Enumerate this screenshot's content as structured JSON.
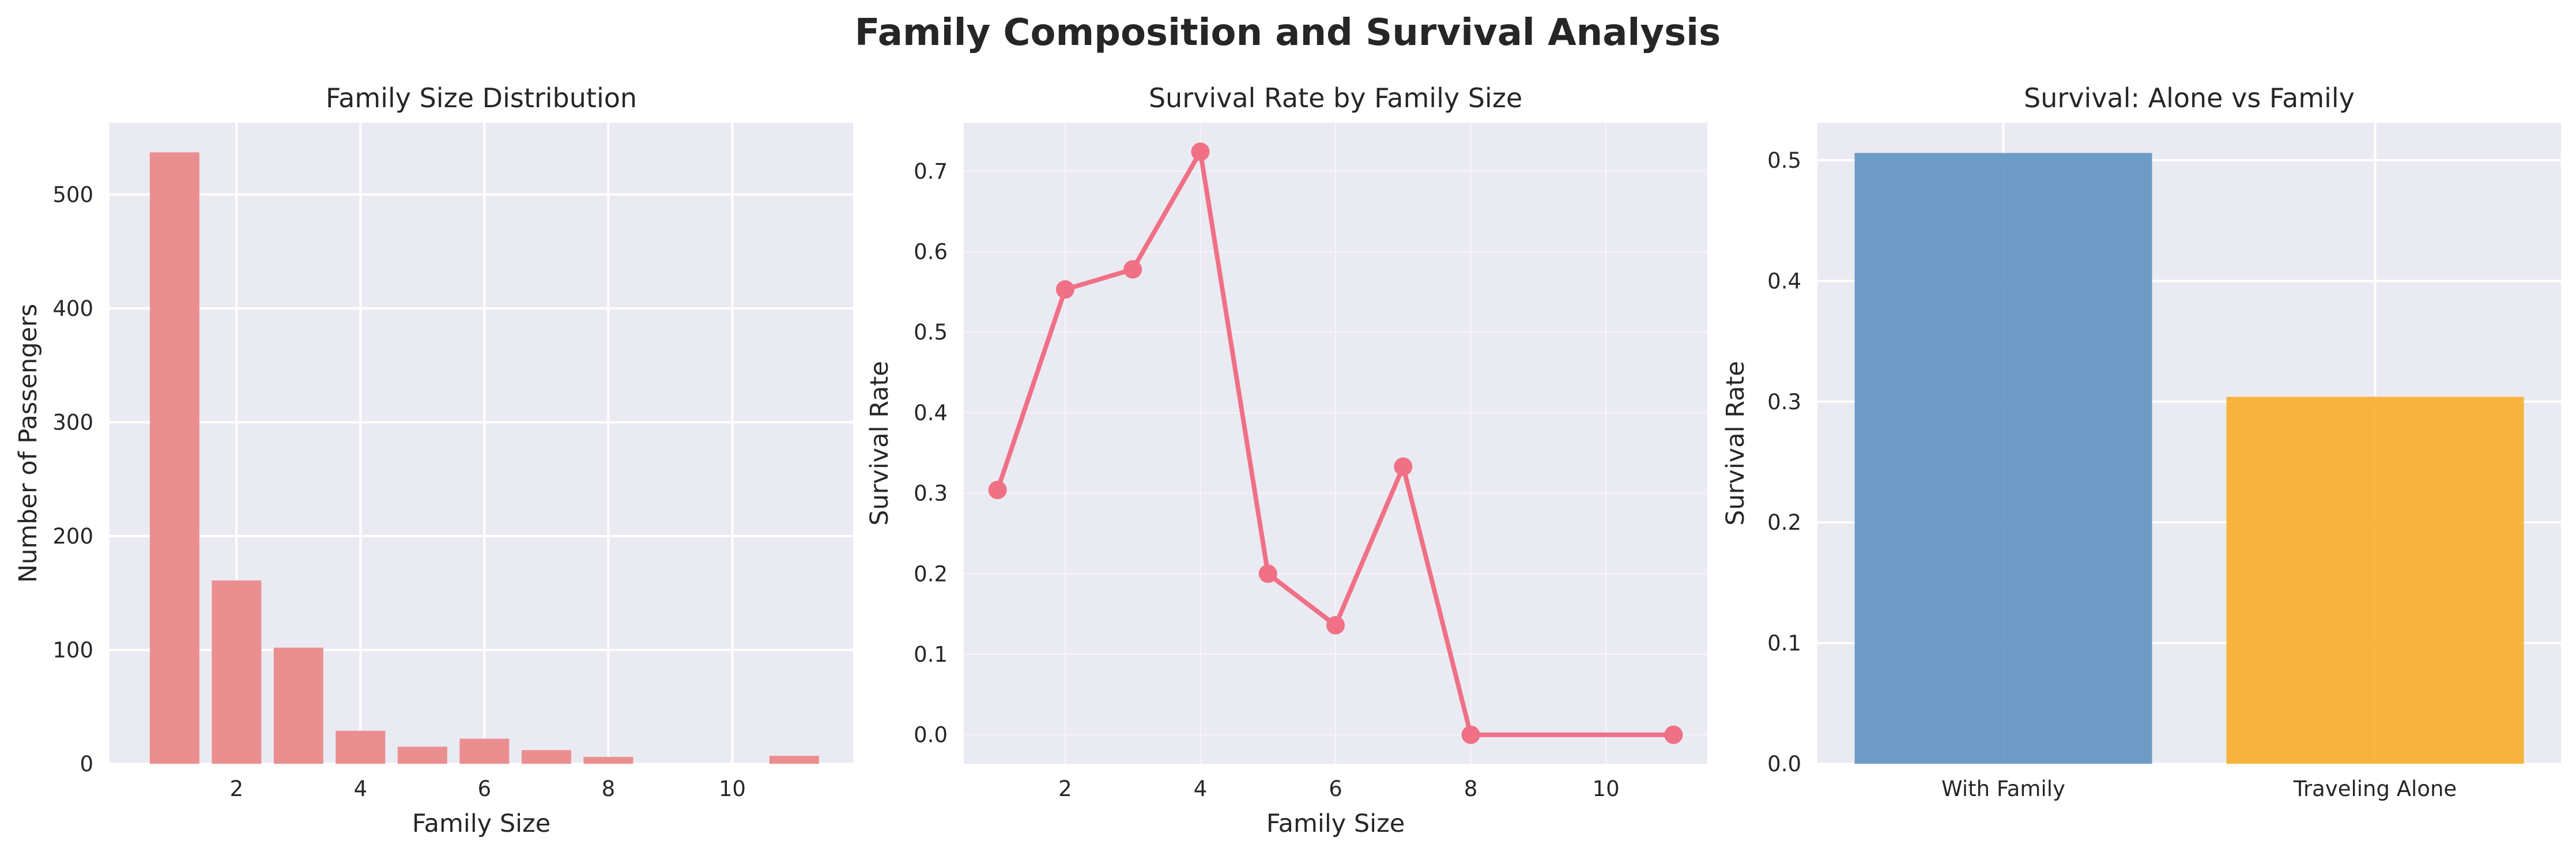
{
  "suptitle": "Family Composition and Survival Analysis",
  "chart_data": [
    {
      "type": "bar",
      "title": "Family Size Distribution",
      "xlabel": "Family Size",
      "ylabel": "Number of Passengers",
      "x": [
        1,
        2,
        3,
        4,
        5,
        6,
        7,
        8,
        11
      ],
      "values": [
        537,
        161,
        102,
        29,
        15,
        22,
        12,
        6,
        7
      ],
      "xlim": [
        -0.05,
        11.95
      ],
      "ylim": [
        0,
        563
      ],
      "xticks": [
        2,
        4,
        6,
        8,
        10
      ],
      "yticks": [
        0,
        100,
        200,
        300,
        400,
        500
      ],
      "bar_width": 0.8,
      "color": "#ea8f8f",
      "grid": true
    },
    {
      "type": "line",
      "title": "Survival Rate by Family Size",
      "xlabel": "Family Size",
      "ylabel": "Survival Rate",
      "x": [
        1,
        2,
        3,
        4,
        5,
        6,
        7,
        8,
        11
      ],
      "values": [
        0.304,
        0.553,
        0.578,
        0.724,
        0.2,
        0.136,
        0.333,
        0.0,
        0.0
      ],
      "xlim": [
        0.5,
        11.5
      ],
      "ylim": [
        -0.036,
        0.76
      ],
      "xticks": [
        2,
        4,
        6,
        8,
        10
      ],
      "yticks": [
        0.0,
        0.1,
        0.2,
        0.3,
        0.4,
        0.5,
        0.6,
        0.7
      ],
      "color": "#f07086",
      "markers": true,
      "grid": true
    },
    {
      "type": "bar",
      "title": "Survival: Alone vs Family",
      "xlabel": "",
      "ylabel": "Survival Rate",
      "categories": [
        "With Family",
        "Traveling Alone"
      ],
      "values": [
        0.506,
        0.304
      ],
      "ylim": [
        0,
        0.531
      ],
      "yticks": [
        0.0,
        0.1,
        0.2,
        0.3,
        0.4,
        0.5
      ],
      "colors": [
        "#5b8fbf",
        "#f8ab23"
      ],
      "grid": true
    }
  ]
}
